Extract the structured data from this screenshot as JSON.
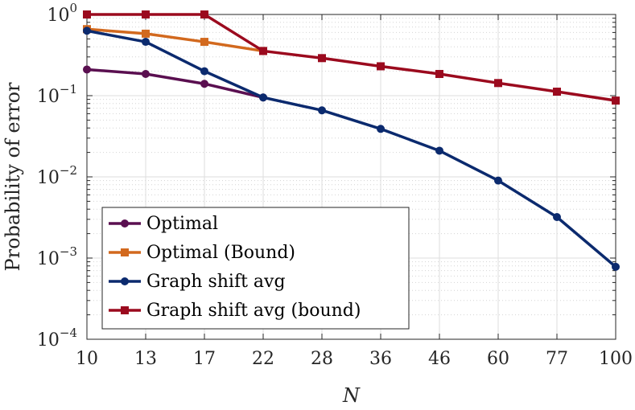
{
  "chart_data": {
    "type": "line",
    "yscale": "log",
    "categories": [
      "10",
      "13",
      "17",
      "22",
      "28",
      "36",
      "46",
      "60",
      "77",
      "100"
    ],
    "xlabel": "N",
    "ylabel": "Probability of error",
    "ylim": [
      0.0001,
      1
    ],
    "ytick_labels": [
      {
        "base": "10",
        "exp": "0",
        "value": 1
      },
      {
        "base": "10",
        "exp": "−1",
        "value": 0.1
      },
      {
        "base": "10",
        "exp": "−2",
        "value": 0.01
      },
      {
        "base": "10",
        "exp": "−3",
        "value": 0.001
      },
      {
        "base": "10",
        "exp": "−4",
        "value": 0.0001
      }
    ],
    "grid": true,
    "legend_position": "bottom-left",
    "series": [
      {
        "name": "Optimal",
        "color": "#5a0f50",
        "marker": "circle",
        "values": [
          0.21,
          0.185,
          0.14,
          0.095,
          null,
          null,
          null,
          null,
          null,
          null
        ]
      },
      {
        "name": "Optimal (Bound)",
        "color": "#d2691e",
        "marker": "square",
        "values": [
          0.66,
          0.58,
          0.46,
          0.355,
          null,
          null,
          null,
          null,
          null,
          null
        ]
      },
      {
        "name": "Graph shift avg",
        "color": "#0b2a6e",
        "marker": "circle",
        "values": [
          0.63,
          0.46,
          0.2,
          0.095,
          0.066,
          0.039,
          0.021,
          0.009,
          0.0032,
          0.00078
        ]
      },
      {
        "name": "Graph shift avg (bound)",
        "color": "#9b0a1e",
        "marker": "square",
        "values": [
          1.0,
          1.0,
          1.0,
          0.355,
          0.29,
          0.23,
          0.185,
          0.143,
          0.112,
          0.087
        ]
      }
    ]
  }
}
